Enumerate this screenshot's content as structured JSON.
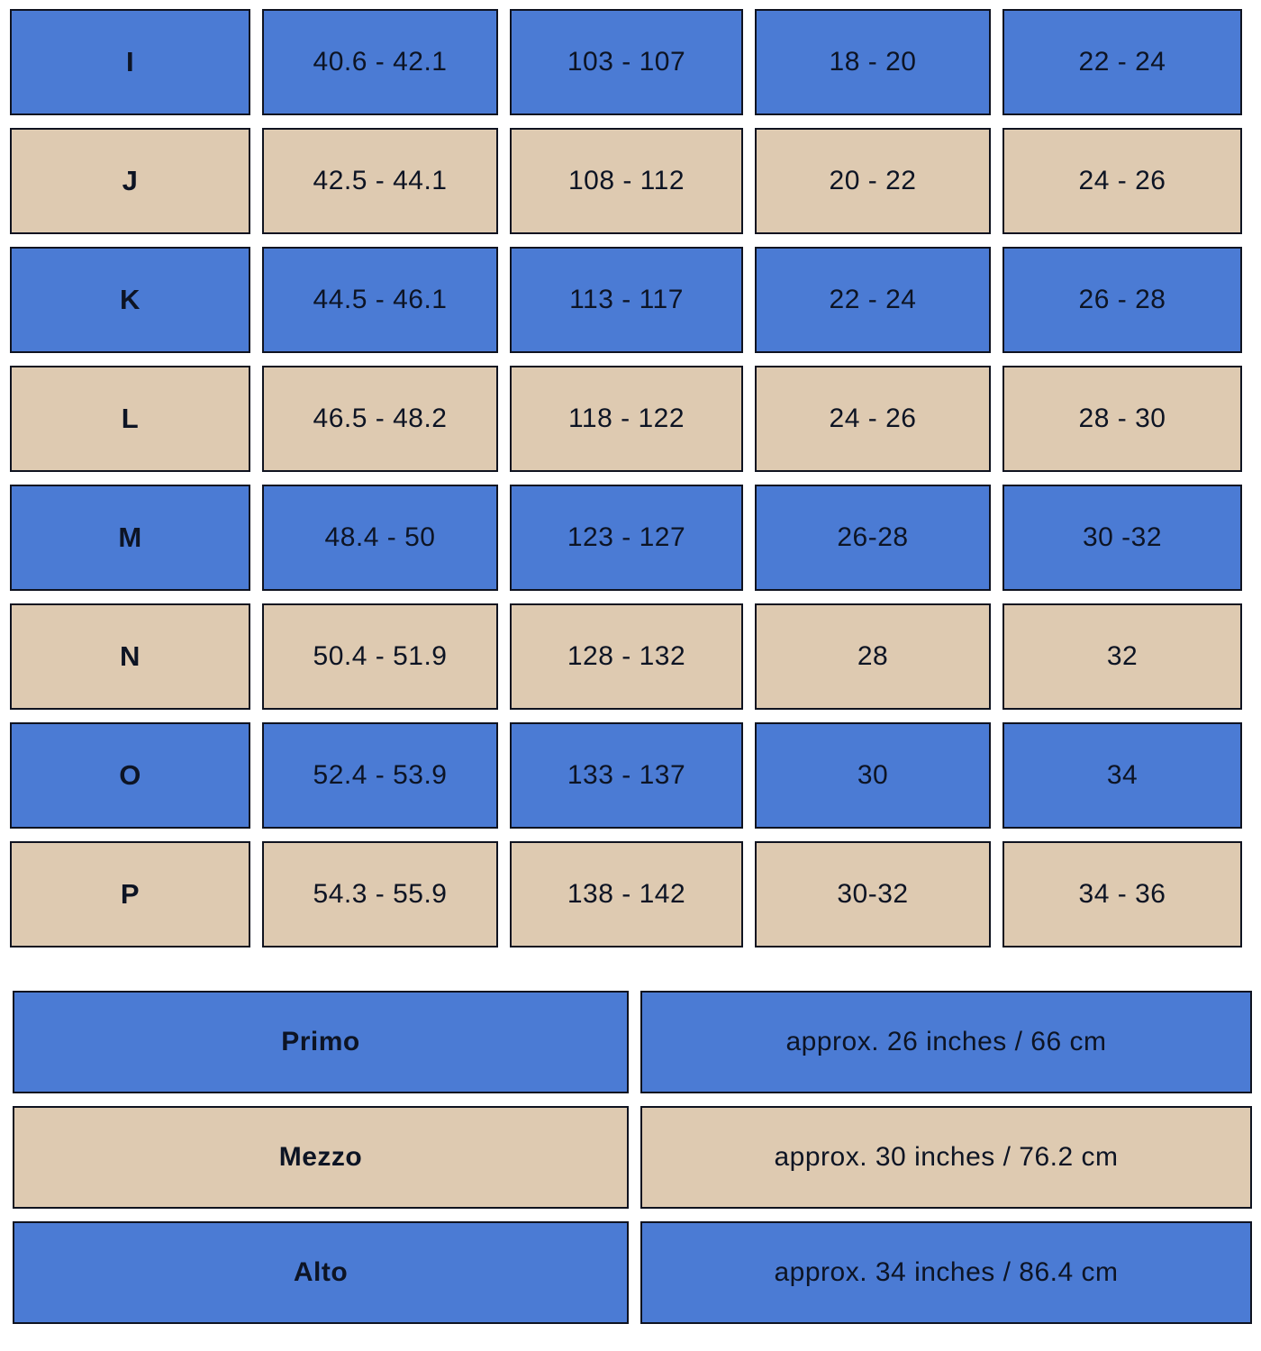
{
  "colors": {
    "blue": "#4b7bd4",
    "tan": "#decab1",
    "border": "#0f1320",
    "text": "#0d1424",
    "background": "#ffffff"
  },
  "chart_data": [
    {
      "type": "table",
      "name": "size-table",
      "rows": [
        {
          "color": "blue",
          "cells": [
            "I",
            "40.6 - 42.1",
            "103 - 107",
            "18 - 20",
            "22 - 24"
          ]
        },
        {
          "color": "tan",
          "cells": [
            "J",
            "42.5 - 44.1",
            "108 - 112",
            "20 - 22",
            "24 - 26"
          ]
        },
        {
          "color": "blue",
          "cells": [
            "K",
            "44.5 - 46.1",
            "113 - 117",
            "22 - 24",
            "26 - 28"
          ]
        },
        {
          "color": "tan",
          "cells": [
            "L",
            "46.5 - 48.2",
            "118 - 122",
            "24 - 26",
            "28 - 30"
          ]
        },
        {
          "color": "blue",
          "cells": [
            "M",
            "48.4 - 50",
            "123 - 127",
            "26-28",
            "30 -32"
          ]
        },
        {
          "color": "tan",
          "cells": [
            "N",
            "50.4 - 51.9",
            "128 - 132",
            "28",
            "32"
          ]
        },
        {
          "color": "blue",
          "cells": [
            "O",
            "52.4 - 53.9",
            "133 - 137",
            "30",
            "34"
          ]
        },
        {
          "color": "tan",
          "cells": [
            "P",
            "54.3 - 55.9",
            "138 - 142",
            "30-32",
            "34 - 36"
          ]
        }
      ]
    },
    {
      "type": "table",
      "name": "length-table",
      "rows": [
        {
          "color": "blue",
          "cells": [
            "Primo",
            "approx. 26 inches / 66 cm"
          ]
        },
        {
          "color": "tan",
          "cells": [
            "Mezzo",
            "approx. 30 inches / 76.2 cm"
          ]
        },
        {
          "color": "blue",
          "cells": [
            "Alto",
            "approx. 34 inches / 86.4 cm"
          ]
        }
      ]
    }
  ]
}
